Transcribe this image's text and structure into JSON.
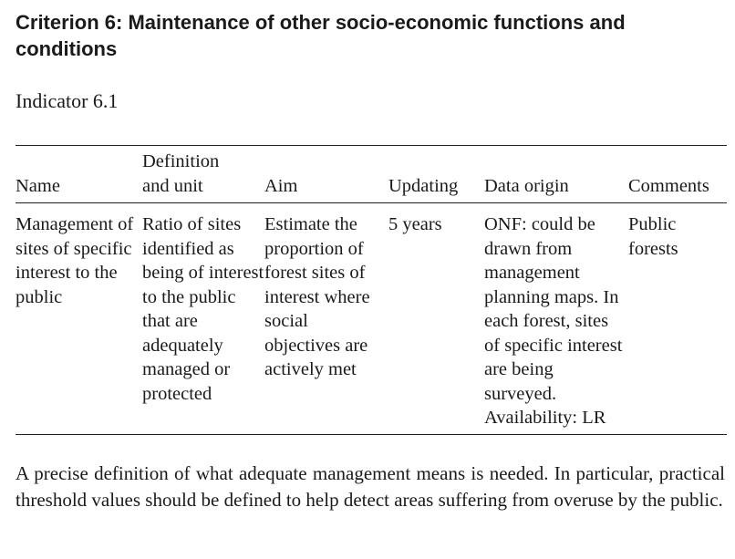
{
  "criterion": {
    "title": "Criterion 6: Maintenance of other socio-economic functions and conditions"
  },
  "indicator": {
    "label": "Indicator 6.1"
  },
  "table": {
    "headers": {
      "name": "Name",
      "definition_line1": "Definition",
      "definition_line2": "and unit",
      "aim": "Aim",
      "updating": "Updating",
      "data_origin": "Data origin",
      "comments": "Comments"
    },
    "row": {
      "name": "Management of sites of specific interest to the public",
      "definition": "Ratio of sites identified as being of interest to the public that are adequately managed or protected",
      "aim": "Estimate the proportion of forest sites of interest where social objectives are actively met",
      "updating": "5 years",
      "data_origin": "ONF: could be drawn from management planning maps. In each forest, sites of specific interest are being surveyed. Availability: LR",
      "comments": "Public forests"
    }
  },
  "note": {
    "text": "A precise definition of what adequate management means is needed. In particular, practical threshold values should be defined to help detect areas suffering from overuse by the public."
  }
}
